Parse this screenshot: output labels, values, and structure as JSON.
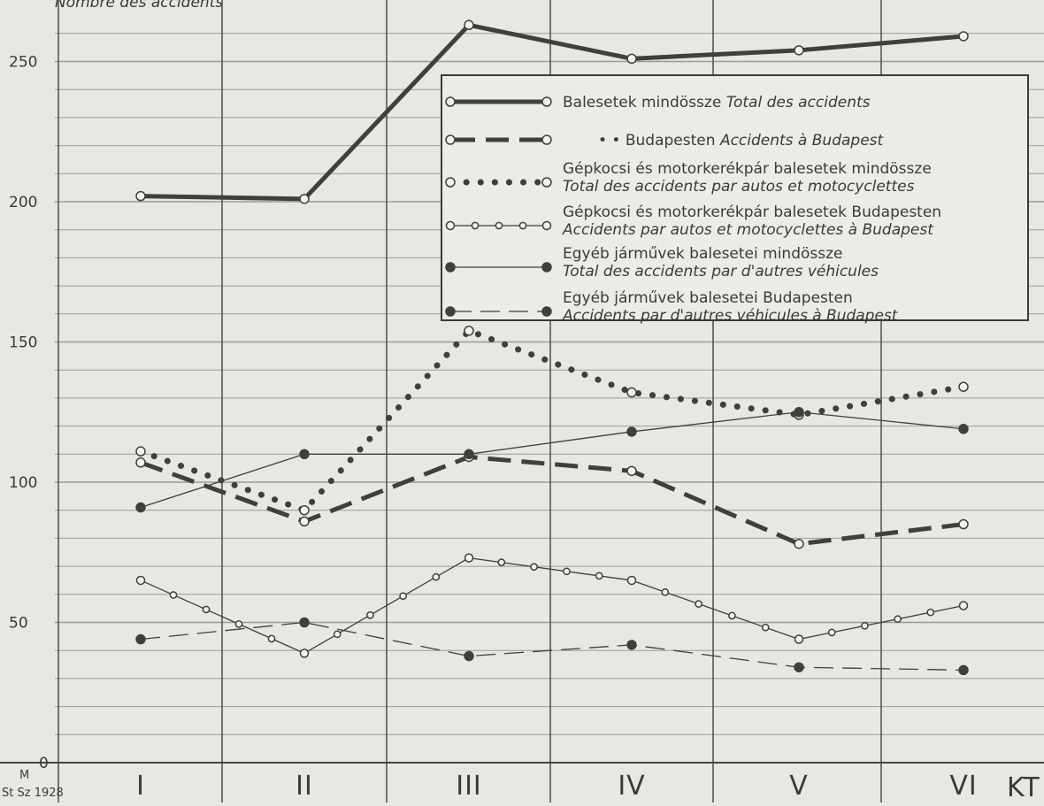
{
  "chart_data": {
    "type": "line",
    "ylabel": "Nombre des accidents",
    "ylim": [
      0,
      265
    ],
    "yticks": [
      "250",
      "200",
      "150",
      "100",
      "50",
      "0"
    ],
    "ytick_values": [
      250,
      200,
      150,
      100,
      50,
      0
    ],
    "categories": [
      "I",
      "II",
      "III",
      "IV",
      "V",
      "VI"
    ],
    "x_unit": "KT",
    "corner_label_top": "M",
    "corner_label_bottom": "St Sz 1928",
    "grid": true,
    "legend_position": "top-right",
    "series": [
      {
        "key": "total",
        "name": "Balesetek mindössze",
        "name_fr": "Total des accidents",
        "style": "thick-solid",
        "values": [
          202,
          201,
          263,
          251,
          254,
          259
        ]
      },
      {
        "key": "budapest",
        "name": "Budapesten",
        "name_prefix": "•  •",
        "name_fr": "Accidents à Budapest",
        "style": "thick-dashed",
        "values": [
          107,
          86,
          109,
          104,
          78,
          85
        ]
      },
      {
        "key": "auto_total",
        "name": "Gépkocsi és motorkerékpár balesetek mindössze",
        "name_fr": "Total des accidents par autos et motocyclettes",
        "style": "dotted",
        "values": [
          111,
          90,
          154,
          132,
          124,
          134
        ]
      },
      {
        "key": "auto_bp",
        "name": "Gépkocsi és motorkerékpár balesetek Budapesten",
        "name_fr": "Accidents par autos et motocyclettes à Budapest",
        "style": "thin-open-markers",
        "values": [
          65,
          39,
          73,
          65,
          44,
          56
        ]
      },
      {
        "key": "other_total",
        "name": "Egyéb járművek balesetei mindössze",
        "name_fr": "Total des accidents par d'autres véhicules",
        "style": "thin-solid-dots",
        "values": [
          91,
          110,
          110,
          118,
          125,
          119
        ]
      },
      {
        "key": "other_bp",
        "name": "Egyéb járművek balesetei Budapesten",
        "name_fr": "Accidents par d'autres véhicules à Budapest",
        "style": "thin-dashed-dots",
        "values": [
          44,
          50,
          38,
          42,
          34,
          33
        ]
      }
    ]
  },
  "colors": {
    "ink": "#3f3f3f",
    "paper": "#e9e7e1",
    "grid": "#9c9a94"
  }
}
